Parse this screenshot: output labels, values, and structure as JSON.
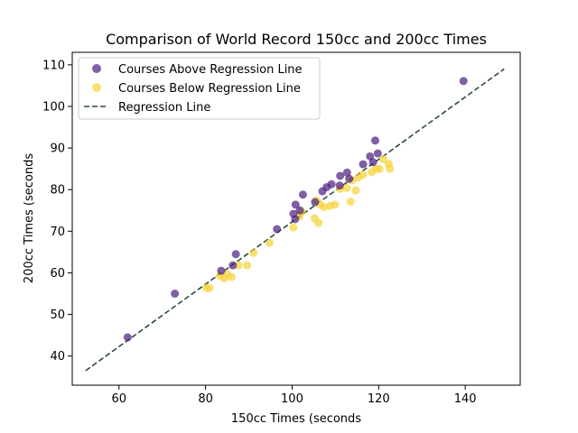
{
  "chart_data": {
    "type": "scatter",
    "title": "Comparison of World Record 150cc and 200cc Times",
    "xlabel": "150cc Times (seconds",
    "ylabel": "200cc Times (seconds",
    "xlim": [
      49.2,
      152.7
    ],
    "ylim": [
      33.0,
      113.0
    ],
    "xticks": [
      60,
      80,
      100,
      120,
      140
    ],
    "yticks": [
      40,
      50,
      60,
      70,
      80,
      90,
      100,
      110
    ],
    "grid": false,
    "legend_position": "upper-left",
    "series": [
      {
        "name": "Courses Above Regression Line",
        "color": "#4b1b7f",
        "points": [
          [
            62.0,
            44.5
          ],
          [
            72.9,
            55.0
          ],
          [
            83.6,
            60.5
          ],
          [
            86.3,
            61.8
          ],
          [
            87.0,
            64.5
          ],
          [
            96.5,
            70.5
          ],
          [
            100.3,
            74.2
          ],
          [
            100.7,
            72.9
          ],
          [
            100.8,
            76.4
          ],
          [
            101.8,
            75.0
          ],
          [
            102.5,
            78.8
          ],
          [
            105.3,
            77.0
          ],
          [
            107.0,
            79.6
          ],
          [
            108.0,
            80.6
          ],
          [
            109.1,
            81.3
          ],
          [
            111.0,
            81.0
          ],
          [
            111.1,
            83.3
          ],
          [
            112.7,
            84.1
          ],
          [
            113.2,
            82.6
          ],
          [
            116.4,
            86.1
          ],
          [
            118.0,
            88.0
          ],
          [
            118.7,
            86.6
          ],
          [
            119.2,
            91.8
          ],
          [
            119.8,
            88.7
          ],
          [
            139.6,
            106.1
          ]
        ]
      },
      {
        "name": "Courses Below Regression Line",
        "color": "#f5d334",
        "points": [
          [
            80.2,
            56.4
          ],
          [
            80.9,
            56.4
          ],
          [
            83.3,
            59.3
          ],
          [
            84.3,
            58.7
          ],
          [
            85.0,
            59.8
          ],
          [
            86.0,
            59.0
          ],
          [
            87.6,
            61.8
          ],
          [
            89.6,
            61.8
          ],
          [
            91.1,
            64.8
          ],
          [
            94.8,
            67.2
          ],
          [
            100.3,
            70.9
          ],
          [
            101.7,
            73.6
          ],
          [
            102.2,
            74.7
          ],
          [
            105.2,
            73.1
          ],
          [
            105.6,
            77.4
          ],
          [
            106.1,
            72.0
          ],
          [
            106.5,
            76.4
          ],
          [
            107.4,
            75.8
          ],
          [
            108.8,
            76.1
          ],
          [
            109.9,
            76.4
          ],
          [
            111.1,
            80.2
          ],
          [
            112.6,
            80.4
          ],
          [
            113.5,
            77.1
          ],
          [
            113.9,
            82.2
          ],
          [
            114.7,
            79.8
          ],
          [
            115.3,
            82.9
          ],
          [
            116.4,
            83.6
          ],
          [
            118.4,
            84.2
          ],
          [
            119.4,
            85.0
          ],
          [
            120.2,
            85.0
          ],
          [
            121.1,
            87.3
          ],
          [
            122.3,
            86.2
          ],
          [
            122.6,
            85.0
          ]
        ]
      }
    ],
    "regression_line": {
      "name": "Regression Line",
      "color": "#2e4a40",
      "x": [
        52.3,
        149.0
      ],
      "y": [
        36.5,
        109.0
      ]
    }
  }
}
